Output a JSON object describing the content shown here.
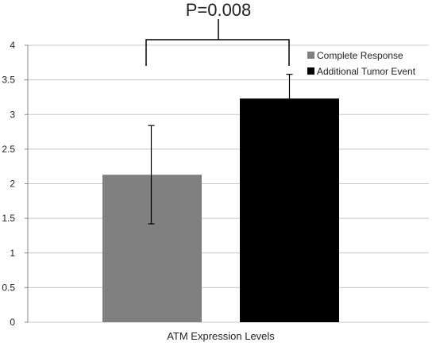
{
  "chart_data": {
    "type": "bar",
    "title": "",
    "xlabel": "ATM Expression Levels",
    "ylabel": "",
    "ylim": [
      0,
      4
    ],
    "yticks": [
      "0",
      "0.5",
      "1",
      "1.5",
      "2",
      "2.5",
      "3",
      "3.5",
      "4"
    ],
    "grid": true,
    "legend_position": "top-right",
    "series": [
      {
        "name": "Complete Response",
        "value": 2.13,
        "error_low": 1.42,
        "error_high": 2.84,
        "color": "#808080"
      },
      {
        "name": "Additional Tumor Event",
        "value": 3.23,
        "error_low": 2.88,
        "error_high": 3.58,
        "color": "#000000"
      }
    ],
    "annotation": {
      "text": "P=0.008"
    }
  }
}
